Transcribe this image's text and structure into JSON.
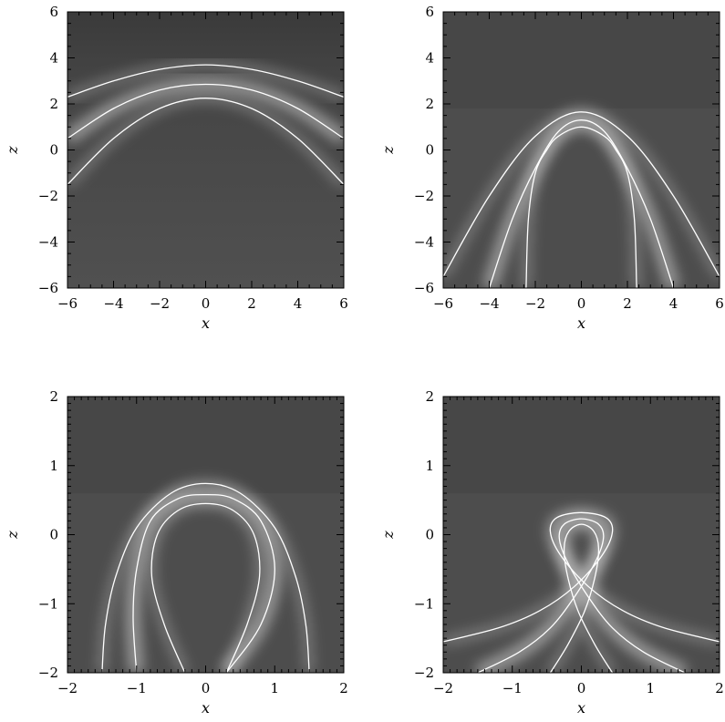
{
  "chart_data": [
    {
      "type": "field-line-image",
      "panel": "top-left",
      "xlabel": "x",
      "ylabel": "z",
      "xlim": [
        -6,
        6
      ],
      "ylim": [
        -6,
        6
      ],
      "xticks": [
        -6,
        -4,
        -2,
        0,
        2,
        4,
        6
      ],
      "yticks": [
        -6,
        -4,
        -2,
        0,
        2,
        4,
        6
      ],
      "xtick_labels": [
        "−6",
        "−4",
        "−2",
        "0",
        "2",
        "4",
        "6"
      ],
      "ytick_labels": [
        "−6",
        "−4",
        "−2",
        "0",
        "2",
        "4",
        "6"
      ],
      "colormap": "grayscale",
      "field_lines": [
        {
          "x": [
            -6,
            -4,
            -2,
            0,
            2,
            4,
            6
          ],
          "z": [
            2.3,
            3.0,
            3.5,
            3.7,
            3.5,
            3.0,
            2.3
          ]
        },
        {
          "x": [
            -6,
            -4,
            -2,
            0,
            2,
            4,
            6
          ],
          "z": [
            0.5,
            1.8,
            2.6,
            2.85,
            2.6,
            1.8,
            0.5
          ]
        },
        {
          "x": [
            -6,
            -4,
            -2,
            0,
            2,
            4,
            6
          ],
          "z": [
            -1.5,
            0.5,
            1.8,
            2.25,
            1.8,
            0.5,
            -1.5
          ]
        }
      ]
    },
    {
      "type": "field-line-image",
      "panel": "top-right",
      "xlabel": "x",
      "ylabel": "z",
      "xlim": [
        -6,
        6
      ],
      "ylim": [
        -6,
        6
      ],
      "xticks": [
        -6,
        -4,
        -2,
        0,
        2,
        4,
        6
      ],
      "yticks": [
        -6,
        -4,
        -2,
        0,
        2,
        4,
        6
      ],
      "xtick_labels": [
        "−6",
        "−4",
        "−2",
        "0",
        "2",
        "4",
        "6"
      ],
      "ytick_labels": [
        "−6",
        "−4",
        "−2",
        "0",
        "2",
        "4",
        "6"
      ],
      "colormap": "grayscale",
      "field_lines": [
        {
          "x": [
            -6,
            -4,
            -2,
            0,
            2,
            4,
            6
          ],
          "z": [
            -5.5,
            -2.0,
            0.6,
            1.65,
            0.6,
            -2.0,
            -5.5
          ]
        },
        {
          "x": [
            -4,
            -3,
            -2,
            -1,
            0,
            1,
            2,
            3,
            4
          ],
          "z": [
            -6,
            -3.0,
            -0.8,
            0.8,
            1.3,
            0.8,
            -0.8,
            -3.0,
            -6
          ]
        },
        {
          "x": [
            -2.4,
            -2.3,
            -2.0,
            -1.5,
            -1,
            0,
            1,
            1.5,
            2.0,
            2.3,
            2.4
          ],
          "z": [
            -6,
            -3.0,
            -1.0,
            0.0,
            0.6,
            1.0,
            0.6,
            0.0,
            -1.0,
            -3.0,
            -6
          ]
        }
      ]
    },
    {
      "type": "field-line-image",
      "panel": "bottom-left",
      "xlabel": "x",
      "ylabel": "z",
      "xlim": [
        -2,
        2
      ],
      "ylim": [
        -2,
        2
      ],
      "xticks": [
        -2,
        -1,
        0,
        1,
        2
      ],
      "yticks": [
        -2,
        -1,
        0,
        1,
        2
      ],
      "xtick_labels": [
        "−2",
        "−1",
        "0",
        "1",
        "2"
      ],
      "ytick_labels": [
        "−2",
        "−1",
        "0",
        "1",
        "2"
      ],
      "colormap": "grayscale",
      "field_lines": [
        {
          "x": [
            -1.5,
            -1.45,
            -1.3,
            -1.0,
            -0.5,
            0,
            0.5,
            1.0,
            1.3,
            1.45,
            1.5
          ],
          "z": [
            -2,
            -1.3,
            -0.6,
            0.1,
            0.6,
            0.74,
            0.6,
            0.1,
            -0.6,
            -1.3,
            -2
          ]
        },
        {
          "x": [
            -1.0,
            -1.05,
            -1.0,
            -0.8,
            -0.4,
            0,
            0.4,
            0.8,
            1.0,
            0.8,
            0.3
          ],
          "z": [
            -2,
            -1.2,
            -0.5,
            0.2,
            0.52,
            0.58,
            0.52,
            0.2,
            -0.5,
            -1.3,
            -2
          ]
        },
        {
          "x": [
            -0.3,
            -0.6,
            -0.78,
            -0.7,
            -0.4,
            0,
            0.4,
            0.7,
            0.78,
            0.6,
            0.3
          ],
          "z": [
            -2,
            -1.3,
            -0.6,
            0.0,
            0.35,
            0.45,
            0.35,
            0.0,
            -0.6,
            -1.3,
            -2
          ]
        }
      ]
    },
    {
      "type": "field-line-image",
      "panel": "bottom-right",
      "xlabel": "x",
      "ylabel": "z",
      "xlim": [
        -2,
        2
      ],
      "ylim": [
        -2,
        2
      ],
      "xticks": [
        -2,
        -1,
        0,
        1,
        2
      ],
      "yticks": [
        -2,
        -1,
        0,
        1,
        2
      ],
      "xtick_labels": [
        "−2",
        "−1",
        "0",
        "1",
        "2"
      ],
      "ytick_labels": [
        "−2",
        "−1",
        "0",
        "1",
        "2"
      ],
      "colormap": "grayscale",
      "field_lines": [
        {
          "x": [
            -2,
            -1.2,
            -0.6,
            -0.1,
            0.3,
            0.45,
            0.35,
            0.0,
            -0.35,
            -0.45,
            -0.3,
            0.1,
            0.6,
            1.2,
            2
          ],
          "z": [
            -1.55,
            -1.35,
            -1.1,
            -0.75,
            -0.3,
            0.05,
            0.25,
            0.32,
            0.25,
            0.05,
            -0.3,
            -0.75,
            -1.1,
            -1.35,
            -1.55
          ]
        },
        {
          "x": [
            -1.5,
            -0.9,
            -0.45,
            -0.1,
            0.2,
            0.32,
            0.25,
            0.0,
            -0.25,
            -0.32,
            -0.2,
            0.1,
            0.45,
            0.9,
            1.5
          ],
          "z": [
            -2,
            -1.7,
            -1.35,
            -0.9,
            -0.4,
            -0.05,
            0.15,
            0.23,
            0.15,
            -0.05,
            -0.4,
            -0.9,
            -1.35,
            -1.7,
            -2
          ]
        },
        {
          "x": [
            -0.45,
            -0.2,
            0.05,
            0.2,
            0.25,
            0.18,
            0.0,
            -0.18,
            -0.25,
            -0.2,
            -0.05,
            0.2,
            0.45
          ],
          "z": [
            -2,
            -1.6,
            -1.1,
            -0.6,
            -0.2,
            0.05,
            0.15,
            0.05,
            -0.2,
            -0.6,
            -1.1,
            -1.6,
            -2
          ]
        }
      ]
    }
  ]
}
